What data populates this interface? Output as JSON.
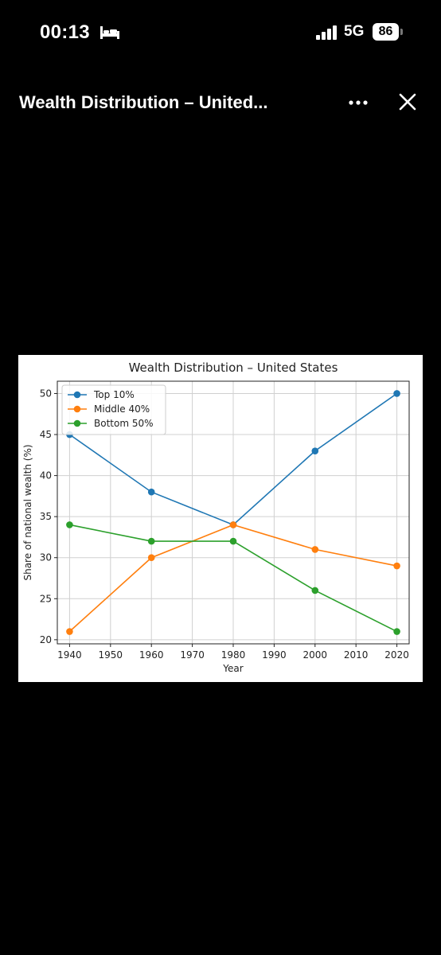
{
  "status_bar": {
    "time": "00:13",
    "network": "5G",
    "battery": "86"
  },
  "viewer": {
    "title": "Wealth Distribution – United...",
    "icons": [
      "bed-icon",
      "signal-icon",
      "more-icon",
      "close-icon"
    ]
  },
  "chart_data": {
    "type": "line",
    "title": "Wealth Distribution – United States",
    "xlabel": "Year",
    "ylabel": "Share of national wealth (%)",
    "x": [
      1940,
      1960,
      1980,
      2000,
      2020
    ],
    "xticks": [
      1940,
      1950,
      1960,
      1970,
      1980,
      1990,
      2000,
      2010,
      2020
    ],
    "yticks": [
      20,
      25,
      30,
      35,
      40,
      45,
      50
    ],
    "xlim": [
      1937,
      2023
    ],
    "ylim": [
      19.5,
      51.5
    ],
    "grid": true,
    "legend": "top-left",
    "series": [
      {
        "name": "Top 10%",
        "color": "#1f77b4",
        "values": [
          45,
          38,
          34,
          43,
          50
        ]
      },
      {
        "name": "Middle 40%",
        "color": "#ff7f0e",
        "values": [
          21,
          30,
          34,
          31,
          29
        ]
      },
      {
        "name": "Bottom 50%",
        "color": "#2ca02c",
        "values": [
          34,
          32,
          32,
          26,
          21
        ]
      }
    ]
  }
}
